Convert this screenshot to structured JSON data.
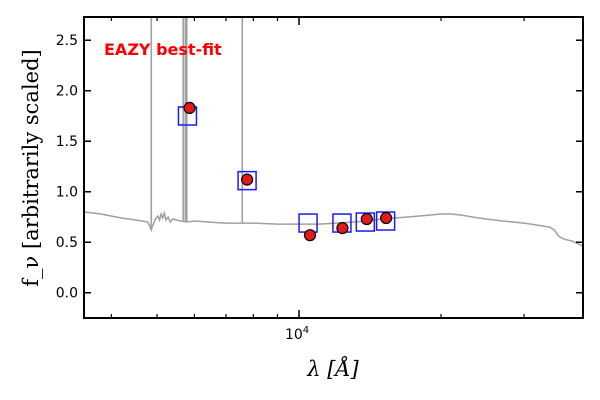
{
  "chart_data": {
    "type": "scatter",
    "title": "",
    "xlabel": "λ [Å]",
    "ylabel": "f_ν [arbitrarily scaled]",
    "xscale": "log",
    "xlim": [
      3500,
      40000
    ],
    "ylim": [
      -0.25,
      2.73
    ],
    "yticks": [
      0.0,
      0.5,
      1.0,
      1.5,
      2.0,
      2.5
    ],
    "ytick_labels": [
      "0.0",
      "0.5",
      "1.0",
      "1.5",
      "2.0",
      "2.5"
    ],
    "xtick_labels": [
      {
        "value": 10000,
        "base": "10",
        "exp": "4"
      }
    ],
    "grid": false,
    "annotation": "EAZY best-fit",
    "colors": {
      "sed": "#a0a0a0",
      "observed_face": "#e31a1c",
      "model_edge": "#1a1aff",
      "annotation": "#ff0000"
    },
    "observed_points": [
      {
        "x": 5860,
        "y": 1.83
      },
      {
        "x": 7760,
        "y": 1.12
      },
      {
        "x": 10550,
        "y": 0.57
      },
      {
        "x": 12360,
        "y": 0.64
      },
      {
        "x": 13920,
        "y": 0.73
      },
      {
        "x": 15300,
        "y": 0.74
      }
    ],
    "model_points": [
      {
        "x": 5800,
        "y": 1.75
      },
      {
        "x": 7760,
        "y": 1.11
      },
      {
        "x": 10450,
        "y": 0.69
      },
      {
        "x": 12330,
        "y": 0.69
      },
      {
        "x": 13820,
        "y": 0.7
      },
      {
        "x": 15260,
        "y": 0.71
      }
    ],
    "sed_curve": [
      [
        3500,
        0.8
      ],
      [
        3800,
        0.78
      ],
      [
        4200,
        0.74
      ],
      [
        4500,
        0.72
      ],
      [
        4780,
        0.7
      ],
      [
        4830,
        0.65
      ],
      [
        4860,
        0.62
      ],
      [
        4900,
        0.67
      ],
      [
        4960,
        0.73
      ],
      [
        5020,
        0.76
      ],
      [
        5060,
        0.72
      ],
      [
        5100,
        0.78
      ],
      [
        5140,
        0.74
      ],
      [
        5180,
        0.79
      ],
      [
        5220,
        0.72
      ],
      [
        5280,
        0.75
      ],
      [
        5330,
        0.7
      ],
      [
        5400,
        0.73
      ],
      [
        5600,
        0.71
      ],
      [
        5800,
        0.7
      ],
      [
        6000,
        0.71
      ],
      [
        6400,
        0.7
      ],
      [
        7000,
        0.69
      ],
      [
        7500,
        0.69
      ],
      [
        8000,
        0.69
      ],
      [
        9000,
        0.68
      ],
      [
        10000,
        0.68
      ],
      [
        11000,
        0.68
      ],
      [
        12000,
        0.69
      ],
      [
        13000,
        0.7
      ],
      [
        14000,
        0.71
      ],
      [
        15000,
        0.73
      ],
      [
        16000,
        0.74
      ],
      [
        17000,
        0.75
      ],
      [
        18000,
        0.76
      ],
      [
        19000,
        0.77
      ],
      [
        20000,
        0.78
      ],
      [
        21000,
        0.78
      ],
      [
        22000,
        0.77
      ],
      [
        24000,
        0.74
      ],
      [
        27000,
        0.71
      ],
      [
        30000,
        0.69
      ],
      [
        32000,
        0.67
      ],
      [
        34000,
        0.65
      ],
      [
        34800,
        0.62
      ],
      [
        35500,
        0.56
      ],
      [
        36500,
        0.53
      ],
      [
        38000,
        0.51
      ],
      [
        40000,
        0.46
      ]
    ],
    "emission_lines": [
      {
        "x": 4861,
        "peak": 2.73
      },
      {
        "x": 5680,
        "peak": 2.73
      },
      {
        "x": 5740,
        "peak": 2.73
      },
      {
        "x": 5780,
        "peak": 2.73
      },
      {
        "x": 7580,
        "peak": 2.73
      }
    ]
  }
}
